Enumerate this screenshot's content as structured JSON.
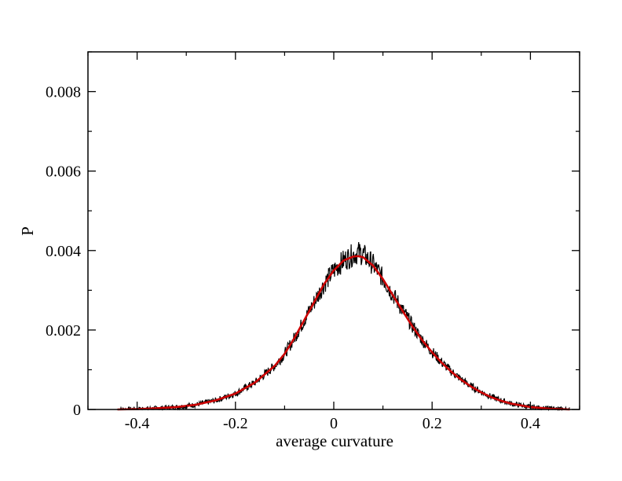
{
  "chart_data": {
    "type": "line",
    "xlabel": "average curvature",
    "ylabel": "P",
    "xlim": [
      -0.5,
      0.5
    ],
    "ylim": [
      0,
      0.009
    ],
    "grid": false,
    "x_ticks": [
      -0.4,
      -0.2,
      0,
      0.2,
      0.4
    ],
    "x_tick_labels": [
      "-0.4",
      "-0.2",
      "0",
      "0.2",
      "0.4"
    ],
    "y_ticks": [
      0,
      0.002,
      0.004,
      0.006,
      0.008
    ],
    "y_tick_labels": [
      "0",
      "0.002",
      "0.004",
      "0.006",
      "0.008"
    ],
    "series": [
      {
        "color": "#000000",
        "style": "noisy histogram",
        "x": [
          -0.44,
          -0.4,
          -0.36,
          -0.32,
          -0.28,
          -0.24,
          -0.2,
          -0.16,
          -0.12,
          -0.1,
          -0.08,
          -0.06,
          -0.04,
          -0.02,
          0.0,
          0.02,
          0.04,
          0.05,
          0.06,
          0.08,
          0.1,
          0.12,
          0.14,
          0.16,
          0.18,
          0.2,
          0.22,
          0.24,
          0.26,
          0.28,
          0.3,
          0.32,
          0.34,
          0.36,
          0.4,
          0.44,
          0.48
        ],
        "y": [
          0.0,
          1e-05,
          3e-05,
          6e-05,
          0.00012,
          0.00023,
          0.0004,
          0.00068,
          0.0011,
          0.0014,
          0.0018,
          0.00225,
          0.0027,
          0.00315,
          0.0035,
          0.00375,
          0.0039,
          0.00395,
          0.0039,
          0.00365,
          0.0033,
          0.0029,
          0.0025,
          0.0021,
          0.00175,
          0.00145,
          0.00118,
          0.00095,
          0.00075,
          0.00058,
          0.00044,
          0.00032,
          0.00023,
          0.00015,
          6e-05,
          2e-05,
          0.0
        ]
      },
      {
        "color": "#cc0000",
        "style": "fit",
        "x": [
          -0.44,
          -0.4,
          -0.36,
          -0.32,
          -0.28,
          -0.24,
          -0.2,
          -0.16,
          -0.12,
          -0.1,
          -0.08,
          -0.06,
          -0.04,
          -0.02,
          0.0,
          0.02,
          0.04,
          0.05,
          0.06,
          0.08,
          0.1,
          0.12,
          0.14,
          0.16,
          0.18,
          0.2,
          0.22,
          0.24,
          0.26,
          0.28,
          0.3,
          0.32,
          0.34,
          0.36,
          0.4,
          0.44,
          0.48
        ],
        "y": [
          0.0,
          1e-05,
          3e-05,
          6e-05,
          0.00012,
          0.00023,
          0.0004,
          0.00068,
          0.0011,
          0.0014,
          0.0018,
          0.00225,
          0.0027,
          0.00315,
          0.0035,
          0.00375,
          0.00385,
          0.00386,
          0.00383,
          0.00362,
          0.00328,
          0.00288,
          0.00248,
          0.00209,
          0.00174,
          0.00144,
          0.00117,
          0.00094,
          0.00074,
          0.00057,
          0.00043,
          0.00031,
          0.00022,
          0.00015,
          6e-05,
          2e-05,
          0.0
        ]
      }
    ]
  }
}
